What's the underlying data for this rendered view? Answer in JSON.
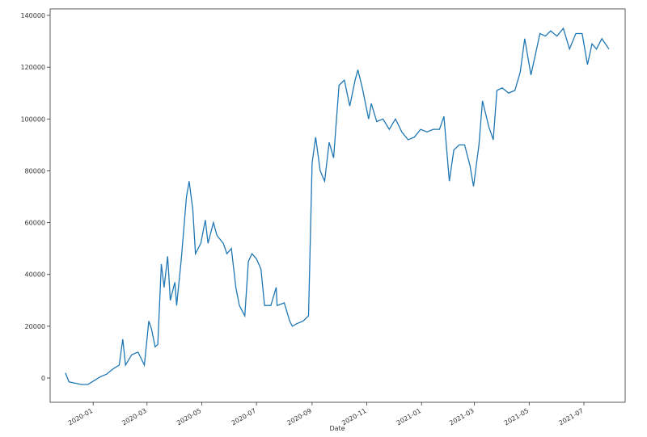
{
  "chart_data": {
    "type": "line",
    "x_label": "Date",
    "x": [
      "2019-12-01",
      "2019-12-05",
      "2019-12-12",
      "2019-12-19",
      "2019-12-26",
      "2020-01-02",
      "2020-01-09",
      "2020-01-16",
      "2020-01-23",
      "2020-01-30",
      "2020-02-03",
      "2020-02-06",
      "2020-02-13",
      "2020-02-20",
      "2020-02-27",
      "2020-03-03",
      "2020-03-06",
      "2020-03-10",
      "2020-03-13",
      "2020-03-17",
      "2020-03-20",
      "2020-03-24",
      "2020-03-27",
      "2020-04-01",
      "2020-04-03",
      "2020-04-08",
      "2020-04-14",
      "2020-04-17",
      "2020-04-21",
      "2020-04-24",
      "2020-04-30",
      "2020-05-05",
      "2020-05-08",
      "2020-05-14",
      "2020-05-18",
      "2020-05-25",
      "2020-05-29",
      "2020-06-03",
      "2020-06-08",
      "2020-06-12",
      "2020-06-18",
      "2020-06-22",
      "2020-06-26",
      "2020-07-01",
      "2020-07-06",
      "2020-07-10",
      "2020-07-17",
      "2020-07-23",
      "2020-07-24",
      "2020-08-01",
      "2020-08-07",
      "2020-08-10",
      "2020-08-15",
      "2020-08-22",
      "2020-08-28",
      "2020-09-01",
      "2020-09-05",
      "2020-09-10",
      "2020-09-15",
      "2020-09-20",
      "2020-09-25",
      "2020-10-01",
      "2020-10-07",
      "2020-10-13",
      "2020-10-19",
      "2020-10-22",
      "2020-10-27",
      "2020-11-03",
      "2020-11-06",
      "2020-11-12",
      "2020-11-19",
      "2020-11-26",
      "2020-12-03",
      "2020-12-10",
      "2020-12-17",
      "2020-12-24",
      "2020-12-31",
      "2021-01-07",
      "2021-01-14",
      "2021-01-21",
      "2021-01-26",
      "2021-02-01",
      "2021-02-06",
      "2021-02-12",
      "2021-02-18",
      "2021-02-24",
      "2021-02-28",
      "2021-03-06",
      "2021-03-10",
      "2021-03-17",
      "2021-03-22",
      "2021-03-26",
      "2021-04-01",
      "2021-04-08",
      "2021-04-15",
      "2021-04-21",
      "2021-04-26",
      "2021-05-03",
      "2021-05-08",
      "2021-05-13",
      "2021-05-19",
      "2021-05-25",
      "2021-06-01",
      "2021-06-08",
      "2021-06-15",
      "2021-06-22",
      "2021-06-29",
      "2021-07-05",
      "2021-07-10",
      "2021-07-15",
      "2021-07-21",
      "2021-07-29"
    ],
    "series": [
      {
        "color": "#1f77b4",
        "values": [
          2000,
          -1500,
          -2000,
          -2500,
          -2500,
          -1000,
          500,
          1500,
          3500,
          5000,
          15000,
          5000,
          9000,
          10000,
          5000,
          22000,
          19000,
          12000,
          13000,
          44000,
          35000,
          47000,
          30000,
          37000,
          28000,
          45000,
          70000,
          76000,
          65000,
          48000,
          52000,
          61000,
          52000,
          60000,
          55000,
          52000,
          48000,
          50000,
          35000,
          28000,
          24000,
          45000,
          48000,
          46000,
          42000,
          28000,
          28000,
          35000,
          28000,
          29000,
          22000,
          20000,
          21000,
          22000,
          24000,
          83000,
          93000,
          80000,
          76000,
          91000,
          85000,
          113000,
          115000,
          105000,
          115000,
          119000,
          112000,
          100000,
          106000,
          99000,
          100000,
          96000,
          100000,
          95000,
          92000,
          93000,
          96000,
          95000,
          96000,
          96000,
          101000,
          76000,
          88000,
          90000,
          90000,
          82000,
          74000,
          90000,
          107000,
          97000,
          92000,
          111000,
          112000,
          110000,
          111000,
          118000,
          131000,
          117000,
          125000,
          133000,
          132000,
          134000,
          132000,
          135000,
          127000,
          133000,
          133000,
          121000,
          129000,
          127000,
          131000,
          127000
        ]
      }
    ],
    "xlim": [
      "2019-11-14",
      "2021-08-16"
    ],
    "xticks": [
      "2020-01",
      "2020-03",
      "2020-05",
      "2020-07",
      "2020-09",
      "2020-11",
      "2021-01",
      "2021-03",
      "2021-05",
      "2021-07"
    ],
    "ylim": [
      -9350,
      142500
    ],
    "yticks": [
      0,
      20000,
      40000,
      60000,
      80000,
      100000,
      120000,
      140000
    ]
  }
}
